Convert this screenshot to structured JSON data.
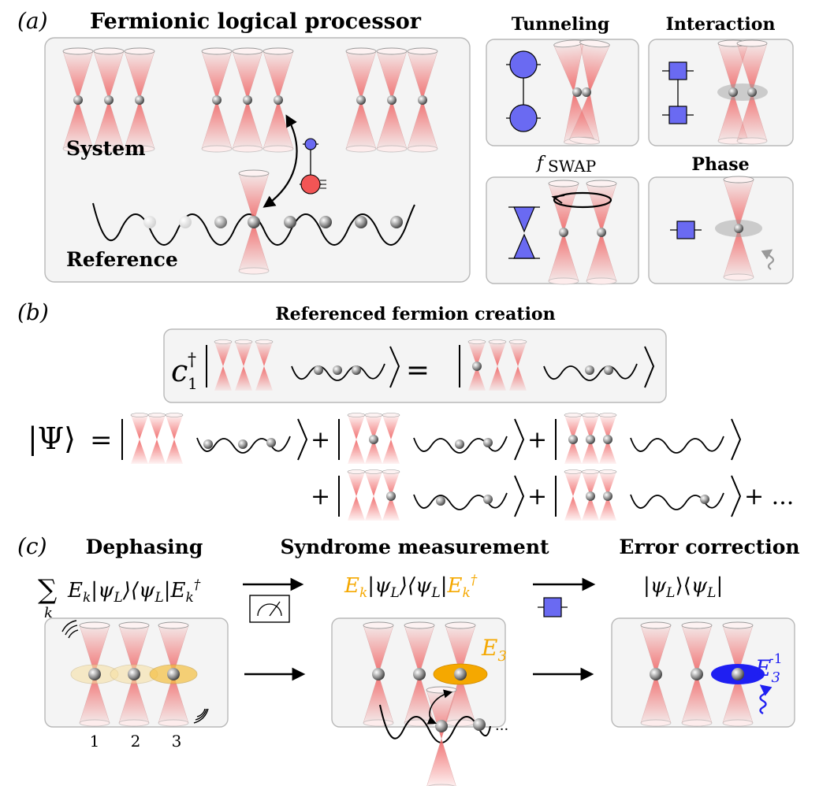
{
  "panel_a": {
    "label": "(a)",
    "title": "Fermionic logical processor",
    "system_label": "System",
    "reference_label": "Reference",
    "gates": {
      "tunneling": "Tunneling",
      "interaction": "Interaction",
      "fswap_f": "f",
      "fswap_rest": "SWAP",
      "phase": "Phase"
    }
  },
  "panel_b": {
    "label": "(b)",
    "title": "Referenced fermion creation",
    "op": "c",
    "op_dagger": "†",
    "op_index": "1",
    "eq": "=",
    "psi": "|Ψ⟩",
    "ellipsis": "+ ..."
  },
  "panel_c": {
    "label": "(c)",
    "dephasing_title": "Dephasing",
    "syndrome_title": "Syndrome measurement",
    "correction_title": "Error correction",
    "sum_symbol": "∑",
    "sum_index": "k",
    "sites": [
      "1",
      "2",
      "3"
    ],
    "error_label": "E",
    "error_index": "3",
    "inverse_sup": "-1",
    "ellipsis": "···"
  },
  "colors": {
    "beam": "#f06a6a",
    "gate_blue": "#6a6af2",
    "gate_red": "#f25555",
    "error_orange": "#f5a800",
    "correction_blue": "#1f1ff2",
    "panel_fill": "#f4f4f4",
    "panel_stroke": "#b8b8b8"
  }
}
